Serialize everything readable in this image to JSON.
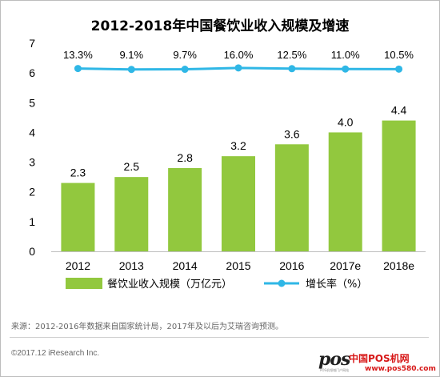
{
  "chart_data": {
    "type": "bar",
    "title": "2012-2018年中国餐饮业收入规模及增速",
    "categories": [
      "2012",
      "2013",
      "2014",
      "2015",
      "2016",
      "2017e",
      "2018e"
    ],
    "series": [
      {
        "name": "餐饮业收入规模（万亿元）",
        "type": "bar",
        "values": [
          2.3,
          2.5,
          2.8,
          3.2,
          3.6,
          4.0,
          4.4
        ],
        "labels": [
          "2.3",
          "2.5",
          "2.8",
          "3.2",
          "3.6",
          "4.0",
          "4.4"
        ],
        "color": "#92c83e"
      },
      {
        "name": "增长率（%）",
        "type": "line",
        "values": [
          13.3,
          9.1,
          9.7,
          16.0,
          12.5,
          11.0,
          10.5
        ],
        "labels": [
          "13.3%",
          "9.1%",
          "9.7%",
          "16.0%",
          "12.5%",
          "11.0%",
          "10.5%"
        ],
        "color": "#2fb7e6"
      }
    ],
    "ylim": [
      0,
      7
    ],
    "yticks": [
      "0",
      "1",
      "2",
      "3",
      "4",
      "5",
      "6",
      "7"
    ],
    "grid": false,
    "legend_position": "bottom"
  },
  "footer": {
    "source_note": "来源：2012-2016年数据来自国家统计局，2017年及以后为艾瑞咨询预测。",
    "copyright": "©2017.12 iResearch Inc."
  },
  "watermark": {
    "mark": "pos",
    "site_name": "中国POS机网",
    "url": "www.pos580.com",
    "tagline": "POS机领域门户网站"
  },
  "colors": {
    "bar": "#92c83e",
    "line": "#2fb7e6",
    "text": "#000000",
    "axis": "#bfbfbf"
  }
}
